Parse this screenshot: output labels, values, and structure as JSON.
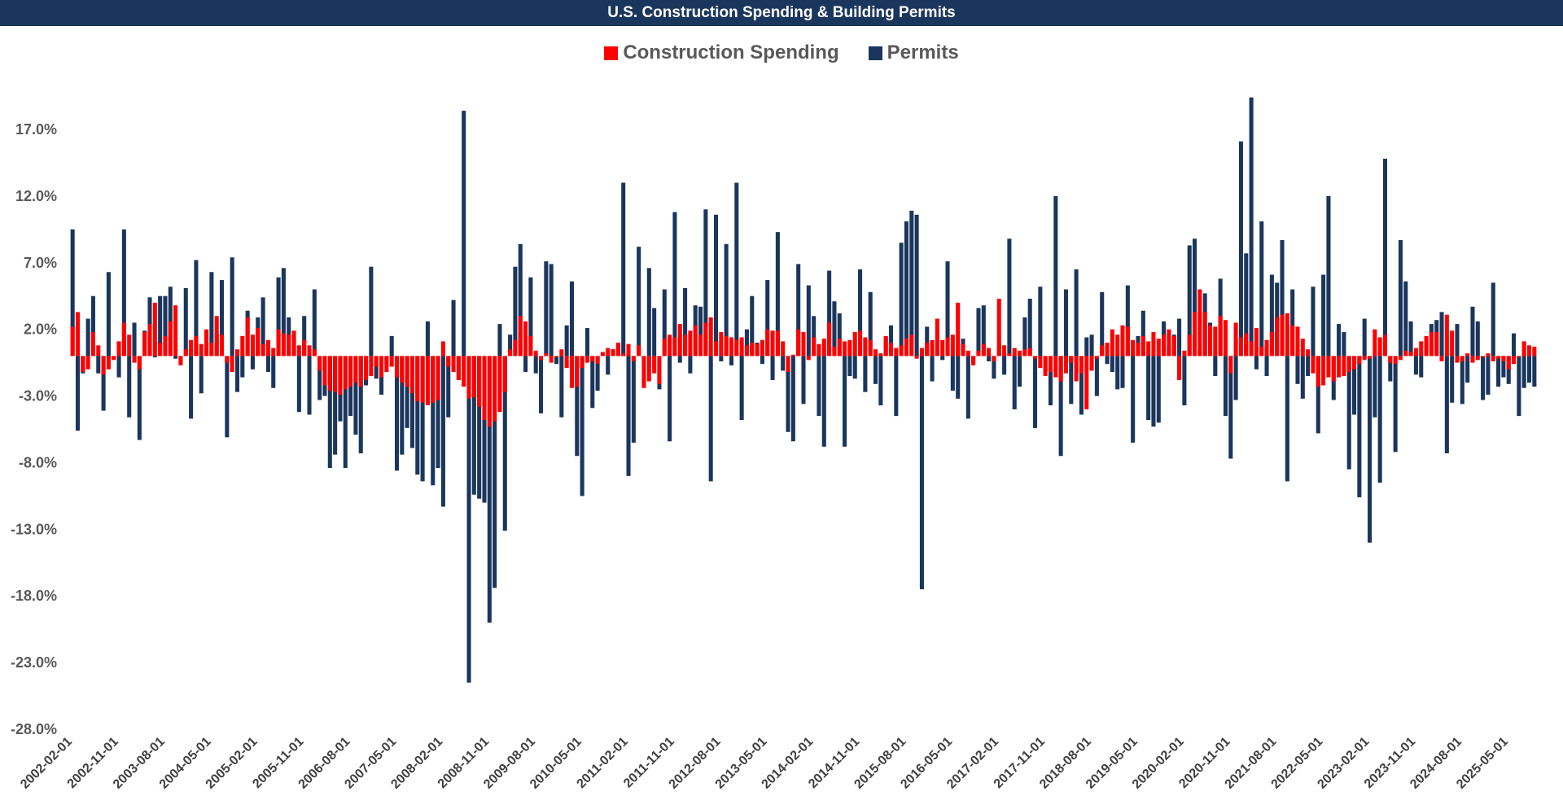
{
  "chart_data": {
    "type": "bar",
    "title": "U.S. Construction Spending & Building Permits",
    "legend": [
      {
        "name": "Construction Spending",
        "color": "#ff0000"
      },
      {
        "name": "Permits",
        "color": "#1b365d"
      }
    ],
    "ylim": [
      -28,
      20
    ],
    "yticks": [
      17,
      12,
      7,
      2,
      -3,
      -8,
      -13,
      -18,
      -23,
      -28
    ],
    "ytick_labels": [
      "17.0%",
      "12.0%",
      "7.0%",
      "2.0%",
      "-3.0%",
      "-8.0%",
      "-13.0%",
      "-18.0%",
      "-23.0%",
      "-28.0%"
    ],
    "x_start": "2002-02-01",
    "x_tick_every": 9,
    "x_tick_labels": [
      "2002-02-01",
      "2002-11-01",
      "2003-08-01",
      "2004-05-01",
      "2005-02-01",
      "2005-11-01",
      "2006-08-01",
      "2007-05-01",
      "2008-02-01",
      "2008-11-01",
      "2009-08-01",
      "2010-05-01",
      "2011-02-01",
      "2011-11-01",
      "2012-08-01",
      "2013-05-01",
      "2014-02-01",
      "2014-11-01",
      "2015-08-01",
      "2016-05-01",
      "2017-02-01",
      "2017-11-01",
      "2018-08-01",
      "2019-05-01",
      "2020-02-01",
      "2020-11-01",
      "2021-08-01",
      "2022-05-01",
      "2023-02-01",
      "2023-11-01",
      "2024-08-01",
      "2025-05-01"
    ],
    "series": [
      {
        "name": "Construction Spending",
        "color": "#ff0000",
        "values": [
          2.2,
          3.3,
          -1.2,
          -1.0,
          1.8,
          0.8,
          -1.4,
          -1.0,
          -0.3,
          1.1,
          2.5,
          1.6,
          -0.5,
          -1.0,
          1.8,
          2.4,
          4.0,
          1.0,
          1.5,
          2.6,
          3.8,
          -0.7,
          0.5,
          1.2,
          1.5,
          0.9,
          2.0,
          1.0,
          3.0,
          1.6,
          -0.5,
          -1.2,
          0.5,
          1.5,
          2.9,
          1.6,
          2.1,
          0.9,
          1.2,
          0.6,
          2.0,
          1.7,
          1.6,
          1.9,
          0.8,
          1.2,
          0.8,
          0.5,
          -1.1,
          -2.2,
          -2.6,
          -2.7,
          -2.9,
          -2.5,
          -2.3,
          -2.0,
          -2.3,
          -1.8,
          -1.5,
          -0.8,
          -1.6,
          -1.2,
          -0.8,
          -1.6,
          -2.0,
          -2.3,
          -2.8,
          -3.4,
          -3.5,
          -3.7,
          -3.5,
          -3.3,
          1.1,
          -0.8,
          -1.2,
          -1.8,
          -2.3,
          -3.2,
          -3.1,
          -3.8,
          -4.8,
          -5.3,
          -4.9,
          -4.2,
          -2.7,
          0.5,
          1.2,
          3.0,
          2.6,
          1.5,
          0.4,
          -0.3,
          0.2,
          -0.5,
          -0.1,
          0.5,
          -0.9,
          -2.4,
          -2.3,
          -0.9,
          -0.5,
          -0.4,
          -0.6,
          0.3,
          0.6,
          0.5,
          1.0,
          0.2,
          0.9,
          -0.4,
          0.8,
          -2.4,
          -1.9,
          -1.3,
          -2.1,
          1.3,
          1.6,
          1.4,
          2.4,
          1.6,
          1.9,
          2.3,
          1.6,
          2.5,
          2.9,
          1.1,
          1.8,
          1.5,
          1.4,
          1.2,
          1.4,
          0.8,
          1.0,
          0.9,
          1.2,
          2.0,
          1.9,
          1.9,
          1.1,
          -1.2,
          0.1,
          2.0,
          1.8,
          -0.3,
          1.4,
          0.9,
          1.3,
          2.5,
          0.7,
          1.3,
          1.1,
          1.2,
          1.8,
          1.9,
          1.4,
          1.2,
          0.5,
          0.2,
          1.5,
          1.0,
          0.6,
          0.8,
          1.3,
          1.6,
          -0.2,
          0.6,
          1.0,
          1.2,
          2.8,
          1.2,
          1.4,
          1.6,
          4.0,
          0.9,
          0.4,
          -0.7,
          0.4,
          0.9,
          0.6,
          -0.4,
          4.3,
          0.8,
          0.2,
          0.6,
          0.4,
          0.5,
          0.6,
          -0.2,
          -0.9,
          -1.5,
          -1.2,
          -1.6,
          -1.9,
          -1.3,
          -0.5,
          -1.9,
          -1.3,
          -4.0,
          -1.1,
          -0.2,
          0.8,
          1.0,
          2.0,
          1.6,
          2.3,
          2.2,
          1.2,
          1.0,
          1.5,
          1.1,
          1.8,
          1.3,
          1.6,
          2.0,
          1.5,
          -1.8,
          0.4,
          1.6,
          3.3,
          5.0,
          3.3,
          2.3,
          2.2,
          3.0,
          2.7,
          -1.3,
          2.5,
          1.4,
          1.7,
          1.1,
          2.1,
          0.7,
          1.2,
          1.8,
          2.9,
          3.1,
          3.2,
          2.3,
          2.2,
          1.3,
          0.5,
          -1.3,
          -2.3,
          -2.2,
          -1.6,
          -1.9,
          -1.6,
          -1.5,
          -1.2,
          -1.0,
          -0.6,
          -0.3,
          -0.2,
          2.0,
          1.4,
          1.6,
          -0.5,
          -0.6,
          -0.3,
          0.4,
          0.3,
          0.6,
          1.1,
          1.5,
          1.8,
          1.8,
          -0.4,
          3.1,
          1.9,
          -0.5,
          -0.4,
          0.2,
          -0.5,
          -0.3,
          -0.1,
          0.2,
          -0.4,
          -0.2,
          -0.4,
          -1.0,
          -0.6,
          -0.1,
          1.1,
          0.8,
          0.7
        ]
      },
      {
        "name": "Permits",
        "color": "#1b365d",
        "values": [
          9.5,
          -5.6,
          -1.3,
          2.8,
          4.5,
          -1.3,
          -4.1,
          6.3,
          -0.2,
          -1.6,
          9.5,
          -4.6,
          2.5,
          -6.3,
          1.9,
          4.4,
          -0.1,
          4.5,
          4.5,
          5.2,
          -0.2,
          -0.3,
          5.1,
          -4.7,
          7.2,
          -2.8,
          0.5,
          6.3,
          1.7,
          5.7,
          -6.1,
          7.4,
          -2.7,
          -1.6,
          3.4,
          -1.0,
          2.9,
          4.4,
          -1.2,
          -2.4,
          5.9,
          6.6,
          2.9,
          1.4,
          -4.2,
          3.0,
          -4.4,
          5.0,
          -3.3,
          -3.0,
          -8.4,
          -7.4,
          -4.9,
          -8.4,
          -4.5,
          -5.9,
          -7.3,
          -2.2,
          6.7,
          -1.7,
          -2.9,
          -0.6,
          1.5,
          -8.6,
          -7.4,
          -5.4,
          -6.9,
          -8.9,
          -9.4,
          2.6,
          -9.7,
          -8.4,
          -11.3,
          -4.6,
          4.2,
          -1.8,
          18.4,
          -24.5,
          -10.4,
          -10.7,
          -11.0,
          -20.0,
          -17.4,
          2.4,
          -13.1,
          1.6,
          6.7,
          8.4,
          -1.2,
          5.9,
          -1.3,
          -4.3,
          7.1,
          6.9,
          -0.6,
          -4.6,
          2.3,
          5.6,
          -7.5,
          -10.5,
          2.1,
          -3.9,
          -2.6,
          0.2,
          -1.4,
          0.5,
          0.8,
          13.0,
          -9.0,
          -6.5,
          8.2,
          -0.4,
          6.6,
          3.6,
          -2.5,
          5.0,
          -6.4,
          10.8,
          -0.5,
          5.1,
          -1.3,
          3.8,
          3.7,
          11.0,
          -9.4,
          10.6,
          -0.4,
          8.4,
          -0.7,
          13.0,
          -4.8,
          2.0,
          4.5,
          1.0,
          -0.6,
          5.7,
          -1.8,
          9.3,
          -1.1,
          -5.7,
          -6.4,
          6.9,
          -3.6,
          5.3,
          3.0,
          -4.5,
          -6.8,
          6.4,
          4.1,
          3.2,
          -6.8,
          -1.5,
          -1.7,
          6.5,
          -2.7,
          4.8,
          -2.1,
          -3.7,
          1.4,
          2.3,
          -4.5,
          8.5,
          10.1,
          10.9,
          10.6,
          -17.5,
          2.2,
          -1.9,
          1.2,
          -0.3,
          7.1,
          -2.6,
          -3.2,
          1.3,
          -4.7,
          -0.5,
          3.6,
          3.8,
          -0.4,
          -1.7,
          1.0,
          -1.4,
          8.8,
          -4.0,
          -2.3,
          2.9,
          4.3,
          -5.4,
          5.2,
          -1.1,
          -3.7,
          12.0,
          -7.5,
          5.0,
          -3.6,
          6.5,
          -4.4,
          1.4,
          1.6,
          -3.0,
          4.8,
          -0.6,
          -1.2,
          -2.5,
          -2.4,
          5.3,
          -6.5,
          1.5,
          3.4,
          -4.8,
          -5.3,
          -5.0,
          2.6,
          0.8,
          1.6,
          2.8,
          -3.7,
          8.3,
          8.8,
          0.5,
          4.7,
          2.5,
          -1.5,
          5.8,
          -4.5,
          -7.7,
          -3.3,
          16.1,
          7.7,
          19.4,
          -1.0,
          10.1,
          -1.5,
          6.1,
          5.5,
          8.7,
          -9.4,
          5.0,
          -2.1,
          -3.2,
          -1.5,
          5.2,
          -5.8,
          6.1,
          12.0,
          -3.3,
          2.4,
          1.8,
          -8.5,
          -4.4,
          -10.6,
          2.8,
          -14.0,
          -4.6,
          -9.5,
          14.8,
          -1.9,
          -7.2,
          8.7,
          5.6,
          2.6,
          -1.4,
          -1.6,
          1.2,
          2.4,
          2.7,
          3.3,
          -7.3,
          -3.5,
          2.4,
          -3.6,
          -2.0,
          3.7,
          2.6,
          -3.3,
          -2.9,
          5.5,
          -2.3,
          -1.6,
          -2.1,
          1.7,
          -4.5,
          -2.4,
          -2.0,
          -2.3
        ]
      }
    ]
  }
}
